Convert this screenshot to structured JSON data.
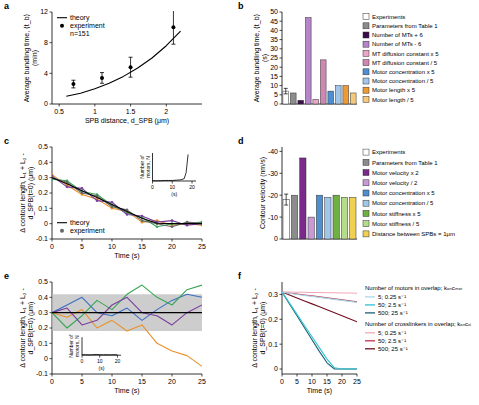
{
  "chart_data": [
    {
      "panel": "a",
      "type": "line",
      "x_label": "SPB distance, d_SPB (μm)",
      "y_label": "Average bundling time, ⟨t_b⟩ (min)",
      "xlim": [
        0.4,
        2.5
      ],
      "xticks": [
        0.5,
        1,
        1.5,
        2
      ],
      "ylim": [
        0,
        12
      ],
      "yticks": [
        0,
        4,
        8,
        12
      ],
      "legend": "upper left",
      "annotation": "n=151",
      "series": [
        {
          "name": "theory",
          "type": "line",
          "color": "#000000",
          "x": [
            0.6,
            0.8,
            1.0,
            1.2,
            1.4,
            1.6,
            1.8,
            2.0,
            2.2
          ],
          "values": [
            1.0,
            1.4,
            2.0,
            2.7,
            3.6,
            4.7,
            6.0,
            7.6,
            9.5
          ]
        },
        {
          "name": "experiment",
          "type": "scatter",
          "marker": "circle",
          "color": "#000000",
          "x": [
            0.7,
            1.1,
            1.5,
            2.1
          ],
          "values": [
            2.6,
            3.4,
            4.8,
            10.0
          ],
          "error": [
            0.5,
            0.7,
            1.3,
            2.2
          ]
        }
      ]
    },
    {
      "panel": "b",
      "type": "bar",
      "y_label": "Average bundling time, ⟨t_b⟩ (s)",
      "categories": [
        "Experiments",
        "Parameters from Table 1",
        "Number of MTs + 6",
        "Number of MTs - 6",
        "MT diffusion constant x 5",
        "MT diffusion constant / 5",
        "Motor concentration x 5",
        "Motor concentration / 5",
        "Motor length x 5",
        "Motor length / 5"
      ],
      "values": [
        7,
        6,
        2,
        47,
        2.5,
        24,
        7,
        10,
        10,
        6
      ],
      "errors": [
        1.5,
        null,
        null,
        null,
        null,
        null,
        null,
        null,
        null,
        null
      ],
      "colors": [
        "#ffffff",
        "#8c8c8c",
        "#3a0d4a",
        "#b684c8",
        "#eaa6c6",
        "#cf86b2",
        "#4f8fd0",
        "#a2c6ea",
        "#ee9a30",
        "#f6c87c"
      ],
      "ylim": [
        0,
        50
      ],
      "yticks": [
        0,
        5,
        10,
        15,
        20,
        25,
        30,
        35,
        40,
        45,
        50
      ],
      "legend": "right"
    },
    {
      "panel": "c",
      "type": "line",
      "x_label": "Time (s)",
      "y_label": "Δ contour length, L₁ + L₂ - d_SPB(t=0) (μm)",
      "x": [
        0,
        2.5,
        5,
        7.5,
        10,
        12.5,
        15,
        17.5,
        20,
        22.5,
        25
      ],
      "xlim": [
        0,
        25
      ],
      "xticks": [
        0,
        5,
        10,
        15,
        20,
        25
      ],
      "ylim": [
        -0.1,
        0.5
      ],
      "yticks": [
        -0.1,
        0,
        0.1,
        0.2,
        0.3,
        0.4,
        0.5
      ],
      "legend": "lower left",
      "series": [
        {
          "name": "theory",
          "type": "line",
          "color": "#000000",
          "values": [
            0.3,
            0.26,
            0.215,
            0.17,
            0.125,
            0.08,
            0.035,
            0.003,
            0,
            0,
            0
          ]
        },
        {
          "name": "experiment",
          "type": "line",
          "marker": "circle",
          "color": "#666666",
          "values": [
            0.3,
            0.27,
            0.2,
            0.18,
            0.11,
            0.09,
            0.02,
            0,
            -0.02,
            0.01,
            0
          ]
        },
        {
          "type": "line",
          "marker": "circle",
          "color": "#7b3f9e",
          "values": [
            0.31,
            0.24,
            0.23,
            0.15,
            0.14,
            0.06,
            0.05,
            0.01,
            0.02,
            -0.01,
            0
          ]
        },
        {
          "type": "line",
          "marker": "circle",
          "color": "#3aa655",
          "values": [
            0.29,
            0.28,
            0.21,
            0.19,
            0.12,
            0.07,
            0.04,
            -0.02,
            0,
            0,
            0.01
          ]
        },
        {
          "type": "line",
          "marker": "circle",
          "color": "#e8912d",
          "values": [
            0.32,
            0.25,
            0.19,
            0.16,
            0.1,
            0.08,
            0.01,
            0.02,
            -0.01,
            0,
            -0.01
          ]
        }
      ],
      "inset": {
        "type": "line",
        "x_label": "(s)",
        "y_label": "Number of motors, N",
        "xlim": [
          0,
          22
        ],
        "xticks": [
          0,
          10,
          20
        ],
        "ylim": [
          0,
          100
        ],
        "tick_labels": "x",
        "x": [
          0,
          2,
          4,
          6,
          8,
          10,
          12,
          14,
          16,
          17,
          18
        ],
        "series": [
          {
            "type": "line",
            "color": "#000000",
            "values": [
              1,
              1,
              1,
              2,
              2,
              2,
              3,
              4,
              8,
              30,
              95
            ]
          }
        ]
      }
    },
    {
      "panel": "d",
      "type": "bar",
      "y_label": "Contour velocity (nm/s)",
      "categories": [
        "Experiments",
        "Parameters from Table 1",
        "Motor velocity x 2",
        "Motor velocity / 2",
        "Motor concentration x 5",
        "Motor concentration / 5",
        "Motor stiffness x 5",
        "Motor stiffness / 5",
        "Distance between SPBs = 1μm"
      ],
      "values": [
        -18,
        -20,
        -37,
        -10,
        -20,
        -19,
        -20,
        -19,
        -19
      ],
      "errors": [
        2.5,
        null,
        null,
        null,
        null,
        null,
        null,
        null,
        null
      ],
      "colors": [
        "#ffffff",
        "#8c8c8c",
        "#7a2a8a",
        "#c79ad6",
        "#4f8fd0",
        "#a2c6ea",
        "#6fb043",
        "#b6dc8a",
        "#f0d050"
      ],
      "ylim": [
        0,
        -42
      ],
      "yticks": [
        0,
        -10,
        -20,
        -30,
        -40
      ],
      "legend": "right"
    },
    {
      "panel": "e",
      "type": "line",
      "x_label": "Time (s)",
      "y_label": "Δ contour length, L₁ + L₂ - d_SPB(t=0) (μm)",
      "x": [
        0,
        2.5,
        5,
        7.5,
        10,
        12.5,
        15,
        17.5,
        20,
        22.5,
        25
      ],
      "xlim": [
        0,
        25
      ],
      "xticks": [
        0,
        5,
        10,
        15,
        20,
        25
      ],
      "ylim": [
        -0.1,
        0.5
      ],
      "yticks": [
        -0.1,
        0,
        0.1,
        0.2,
        0.3,
        0.4,
        0.5
      ],
      "series": [
        {
          "type": "line",
          "color": "#000000",
          "values": [
            0.3,
            0.3,
            0.3,
            0.3,
            0.3,
            0.3,
            0.3,
            0.3,
            0.3,
            0.3,
            0.3
          ],
          "error": [
            0.12,
            0.12,
            0.12,
            0.12,
            0.12,
            0.12,
            0.12,
            0.12,
            0.12,
            0.12,
            0.12
          ]
        },
        {
          "type": "line",
          "color": "#7b3f9e",
          "values": [
            0.3,
            0.33,
            0.22,
            0.25,
            0.35,
            0.4,
            0.3,
            0.28,
            0.22,
            0.3,
            0.35
          ]
        },
        {
          "type": "line",
          "color": "#3aa655",
          "values": [
            0.3,
            0.2,
            0.28,
            0.38,
            0.32,
            0.42,
            0.48,
            0.4,
            0.35,
            0.45,
            0.48
          ]
        },
        {
          "type": "line",
          "color": "#e8912d",
          "values": [
            0.3,
            0.27,
            0.32,
            0.2,
            0.25,
            0.18,
            0.22,
            0.1,
            0.05,
            0.02,
            -0.05
          ]
        },
        {
          "type": "line",
          "color": "#3b6fc4",
          "values": [
            0.3,
            0.35,
            0.4,
            0.3,
            0.28,
            0.33,
            0.25,
            0.32,
            0.38,
            0.42,
            0.4
          ]
        }
      ],
      "inset": {
        "type": "line",
        "x_label": "(s)",
        "y_label": "Number of motors, N",
        "xlim": [
          0,
          22
        ],
        "xticks": [
          0,
          10,
          20
        ],
        "ylim": [
          0,
          100
        ],
        "tick_labels": "x",
        "x": [
          0,
          2,
          4,
          6,
          8,
          10,
          12,
          14,
          16,
          18,
          20
        ],
        "series": [
          {
            "type": "line",
            "color": "#000000",
            "values": [
              2,
              3,
              2,
              3,
              4,
              3,
              2,
              3,
              2,
              3,
              2
            ]
          }
        ]
      }
    },
    {
      "panel": "f",
      "type": "line",
      "x_label": "Time (s)",
      "y_label": "Δ contour length, L₁ + L₂ - d_SPB(t=0) (μm)",
      "x": [
        0,
        2.5,
        5,
        7.5,
        10,
        12.5,
        15,
        17.5,
        20,
        22.5,
        25
      ],
      "xlim": [
        0,
        25
      ],
      "xticks": [
        0,
        5,
        10,
        15,
        20,
        25
      ],
      "ylim": [
        -0.02,
        0.35
      ],
      "yticks": [
        0,
        0.1,
        0.2,
        0.3
      ],
      "legend": "right",
      "legend_titles": [
        "Number of motors in overlap; kₒₙcₘₒₜ",
        "Number of crosslinkers in overlap; kₒₙcₓₗ"
      ],
      "series": [
        {
          "name": "5; 0.25 s⁻¹",
          "type": "line",
          "color": "#a9d9e8",
          "values": [
            0.31,
            0.305,
            0.3,
            0.296,
            0.292,
            0.288,
            0.284,
            0.28,
            0.276,
            0.272,
            0.268
          ]
        },
        {
          "name": "50; 2.5 s⁻¹",
          "type": "line",
          "color": "#2fc2d6",
          "values": [
            0.31,
            0.265,
            0.22,
            0.175,
            0.13,
            0.085,
            0.04,
            0.005,
            0,
            0,
            0
          ]
        },
        {
          "name": "500; 25 s⁻¹",
          "type": "line",
          "color": "#1c5f6e",
          "values": [
            0.31,
            0.262,
            0.214,
            0.166,
            0.118,
            0.07,
            0.025,
            0,
            0,
            0,
            0
          ]
        },
        {
          "name": "5; 0.25 s⁻¹",
          "type": "line",
          "color": "#f0a8b8",
          "values": [
            0.31,
            0.31,
            0.309,
            0.309,
            0.308,
            0.308,
            0.307,
            0.307,
            0.306,
            0.306,
            0.305
          ]
        },
        {
          "name": "50; 2.5 s⁻¹",
          "type": "line",
          "color": "#c0304a",
          "values": [
            0.31,
            0.306,
            0.302,
            0.298,
            0.294,
            0.29,
            0.286,
            0.282,
            0.278,
            0.274,
            0.27
          ]
        },
        {
          "name": "500; 25 s⁻¹",
          "type": "line",
          "color": "#6e1020",
          "values": [
            0.31,
            0.298,
            0.286,
            0.274,
            0.262,
            0.25,
            0.238,
            0.226,
            0.214,
            0.202,
            0.19
          ]
        }
      ]
    }
  ]
}
